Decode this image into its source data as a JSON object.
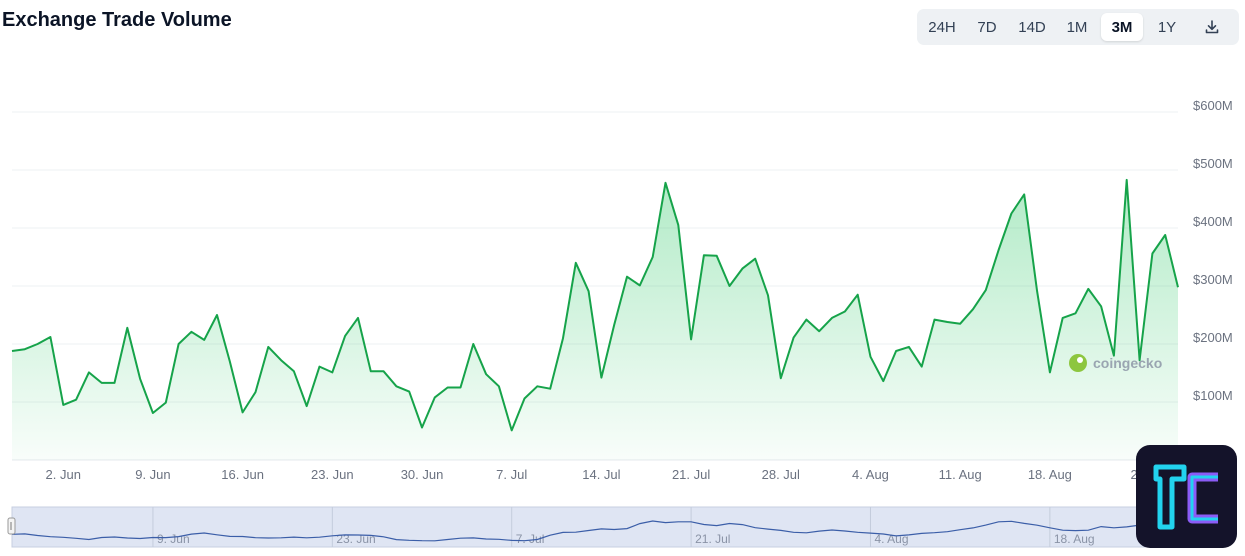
{
  "header": {
    "title": "Exchange Trade Volume",
    "ranges": [
      "24H",
      "7D",
      "14D",
      "1M",
      "3M",
      "1Y"
    ],
    "active_range": "3M",
    "download_icon": "download-icon"
  },
  "watermark": {
    "text": "coingecko",
    "icon": "coingecko-gecko-icon"
  },
  "badge": {
    "icon": "tc-logo-icon"
  },
  "colors": {
    "line": "#16a34a",
    "fill": "#22c55e",
    "navigator_line": "#3b5ea8",
    "navigator_bg": "#dfe5f3"
  },
  "chart_data": {
    "type": "area",
    "title": "Exchange Trade Volume",
    "x_ticks": [
      "2. Jun",
      "9. Jun",
      "16. Jun",
      "23. Jun",
      "30. Jun",
      "7. Jul",
      "14. Jul",
      "21. Jul",
      "28. Jul",
      "4. Aug",
      "11. Aug",
      "18. Aug",
      "25."
    ],
    "y_ticks": [
      "$100M",
      "$200M",
      "$300M",
      "$400M",
      "$500M",
      "$600M"
    ],
    "ylim": [
      0,
      600
    ],
    "unit": "USD millions",
    "grid": true,
    "series": [
      {
        "values": [
          188,
          191,
          200,
          212,
          95,
          104,
          151,
          133,
          133,
          228,
          140,
          81,
          99,
          200,
          221,
          207,
          250,
          170,
          82,
          117,
          195,
          172,
          153,
          93,
          161,
          151,
          214,
          245,
          153,
          153,
          127,
          118,
          56,
          108,
          125,
          125,
          200,
          148,
          127,
          51,
          106,
          127,
          123,
          210,
          340,
          291,
          142,
          233,
          316,
          301,
          350,
          478,
          405,
          208,
          353,
          352,
          300,
          330,
          347,
          284,
          141,
          211,
          242,
          222,
          245,
          256,
          285,
          178,
          136,
          188,
          195,
          161,
          242,
          238,
          235,
          260,
          293,
          362,
          425,
          458,
          291,
          151,
          245,
          253,
          295,
          265,
          180,
          483,
          172,
          356,
          388,
          298
        ]
      }
    ],
    "navigator_ticks": [
      "9. Jun",
      "23. Jun",
      "7. Jul",
      "21. Jul",
      "4. Aug",
      "18. Aug"
    ]
  }
}
